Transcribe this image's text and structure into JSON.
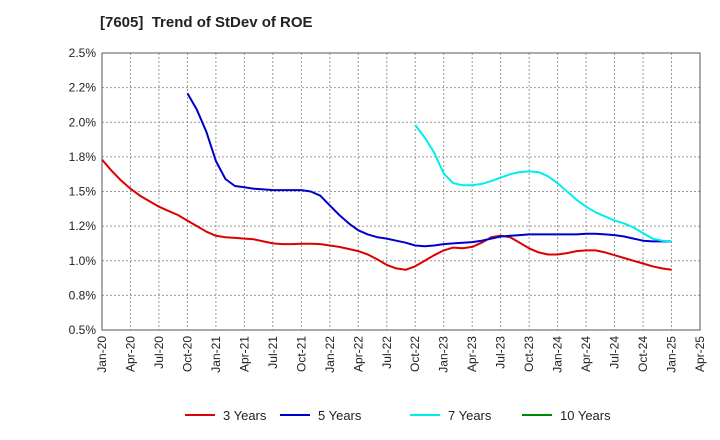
{
  "chart_data": {
    "type": "line",
    "title": "[7605]  Trend of StDev of ROE",
    "xlabel": "",
    "ylabel": "",
    "ylim": [
      0.5,
      2.5
    ],
    "y_ticks": [
      "0.5%",
      "0.8%",
      "1.0%",
      "1.2%",
      "1.5%",
      "1.8%",
      "2.0%",
      "2.2%",
      "2.5%"
    ],
    "x_ticks": [
      "Jan-20",
      "Apr-20",
      "Jul-20",
      "Oct-20",
      "Jan-21",
      "Apr-21",
      "Jul-21",
      "Oct-21",
      "Jan-22",
      "Apr-22",
      "Jul-22",
      "Oct-22",
      "Jan-23",
      "Apr-23",
      "Jul-23",
      "Oct-23",
      "Jan-24",
      "Apr-24",
      "Jul-24",
      "Oct-24",
      "Jan-25",
      "Apr-25"
    ],
    "grid": true,
    "legend_position": "bottom",
    "series": [
      {
        "name": "3 Years",
        "color": "#dd0000",
        "values": [
          [
            "2020-01",
            1.73
          ],
          [
            "2020-02",
            1.65
          ],
          [
            "2020-03",
            1.58
          ],
          [
            "2020-04",
            1.52
          ],
          [
            "2020-05",
            1.47
          ],
          [
            "2020-06",
            1.43
          ],
          [
            "2020-07",
            1.39
          ],
          [
            "2020-08",
            1.36
          ],
          [
            "2020-09",
            1.33
          ],
          [
            "2020-10",
            1.29
          ],
          [
            "2020-11",
            1.25
          ],
          [
            "2020-12",
            1.21
          ],
          [
            "2021-01",
            1.18
          ],
          [
            "2021-02",
            1.17
          ],
          [
            "2021-03",
            1.165
          ],
          [
            "2021-04",
            1.16
          ],
          [
            "2021-05",
            1.155
          ],
          [
            "2021-06",
            1.14
          ],
          [
            "2021-07",
            1.125
          ],
          [
            "2021-08",
            1.12
          ],
          [
            "2021-09",
            1.12
          ],
          [
            "2021-10",
            1.123
          ],
          [
            "2021-11",
            1.123
          ],
          [
            "2021-12",
            1.12
          ],
          [
            "2022-01",
            1.11
          ],
          [
            "2022-02",
            1.1
          ],
          [
            "2022-03",
            1.085
          ],
          [
            "2022-04",
            1.07
          ],
          [
            "2022-05",
            1.045
          ],
          [
            "2022-06",
            1.01
          ],
          [
            "2022-07",
            0.97
          ],
          [
            "2022-08",
            0.945
          ],
          [
            "2022-09",
            0.935
          ],
          [
            "2022-10",
            0.96
          ],
          [
            "2022-11",
            1.0
          ],
          [
            "2022-12",
            1.04
          ],
          [
            "2023-01",
            1.075
          ],
          [
            "2023-02",
            1.095
          ],
          [
            "2023-03",
            1.09
          ],
          [
            "2023-04",
            1.1
          ],
          [
            "2023-05",
            1.13
          ],
          [
            "2023-06",
            1.17
          ],
          [
            "2023-07",
            1.18
          ],
          [
            "2023-08",
            1.17
          ],
          [
            "2023-09",
            1.13
          ],
          [
            "2023-10",
            1.09
          ],
          [
            "2023-11",
            1.06
          ],
          [
            "2023-12",
            1.045
          ],
          [
            "2024-01",
            1.045
          ],
          [
            "2024-02",
            1.055
          ],
          [
            "2024-03",
            1.07
          ],
          [
            "2024-04",
            1.075
          ],
          [
            "2024-05",
            1.075
          ],
          [
            "2024-06",
            1.06
          ],
          [
            "2024-07",
            1.04
          ],
          [
            "2024-08",
            1.02
          ],
          [
            "2024-09",
            1.0
          ],
          [
            "2024-10",
            0.98
          ],
          [
            "2024-11",
            0.96
          ],
          [
            "2024-12",
            0.945
          ],
          [
            "2025-01",
            0.935
          ]
        ]
      },
      {
        "name": "5 Years",
        "color": "#0000cc",
        "values": [
          [
            "2020-10",
            2.21
          ],
          [
            "2020-11",
            2.09
          ],
          [
            "2020-12",
            1.93
          ],
          [
            "2021-01",
            1.72
          ],
          [
            "2021-02",
            1.59
          ],
          [
            "2021-03",
            1.54
          ],
          [
            "2021-04",
            1.53
          ],
          [
            "2021-05",
            1.52
          ],
          [
            "2021-06",
            1.515
          ],
          [
            "2021-07",
            1.51
          ],
          [
            "2021-08",
            1.51
          ],
          [
            "2021-09",
            1.51
          ],
          [
            "2021-10",
            1.51
          ],
          [
            "2021-11",
            1.5
          ],
          [
            "2021-12",
            1.47
          ],
          [
            "2022-01",
            1.4
          ],
          [
            "2022-02",
            1.33
          ],
          [
            "2022-03",
            1.27
          ],
          [
            "2022-04",
            1.22
          ],
          [
            "2022-05",
            1.19
          ],
          [
            "2022-06",
            1.17
          ],
          [
            "2022-07",
            1.16
          ],
          [
            "2022-08",
            1.145
          ],
          [
            "2022-09",
            1.13
          ],
          [
            "2022-10",
            1.11
          ],
          [
            "2022-11",
            1.105
          ],
          [
            "2022-12",
            1.11
          ],
          [
            "2023-01",
            1.12
          ],
          [
            "2023-02",
            1.125
          ],
          [
            "2023-03",
            1.13
          ],
          [
            "2023-04",
            1.135
          ],
          [
            "2023-05",
            1.145
          ],
          [
            "2023-06",
            1.16
          ],
          [
            "2023-07",
            1.175
          ],
          [
            "2023-08",
            1.18
          ],
          [
            "2023-09",
            1.185
          ],
          [
            "2023-10",
            1.19
          ],
          [
            "2023-11",
            1.19
          ],
          [
            "2023-12",
            1.19
          ],
          [
            "2024-01",
            1.19
          ],
          [
            "2024-02",
            1.19
          ],
          [
            "2024-03",
            1.19
          ],
          [
            "2024-04",
            1.195
          ],
          [
            "2024-05",
            1.195
          ],
          [
            "2024-06",
            1.19
          ],
          [
            "2024-07",
            1.185
          ],
          [
            "2024-08",
            1.175
          ],
          [
            "2024-09",
            1.16
          ],
          [
            "2024-10",
            1.145
          ],
          [
            "2024-11",
            1.14
          ],
          [
            "2024-12",
            1.14
          ],
          [
            "2025-01",
            1.14
          ]
        ]
      },
      {
        "name": "7 Years",
        "color": "#00eeee",
        "values": [
          [
            "2022-10",
            1.98
          ],
          [
            "2022-11",
            1.89
          ],
          [
            "2022-12",
            1.78
          ],
          [
            "2023-01",
            1.63
          ],
          [
            "2023-02",
            1.56
          ],
          [
            "2023-03",
            1.545
          ],
          [
            "2023-04",
            1.545
          ],
          [
            "2023-05",
            1.555
          ],
          [
            "2023-06",
            1.575
          ],
          [
            "2023-07",
            1.6
          ],
          [
            "2023-08",
            1.625
          ],
          [
            "2023-09",
            1.64
          ],
          [
            "2023-10",
            1.645
          ],
          [
            "2023-11",
            1.64
          ],
          [
            "2023-12",
            1.61
          ],
          [
            "2024-01",
            1.56
          ],
          [
            "2024-02",
            1.5
          ],
          [
            "2024-03",
            1.44
          ],
          [
            "2024-04",
            1.39
          ],
          [
            "2024-05",
            1.35
          ],
          [
            "2024-06",
            1.32
          ],
          [
            "2024-07",
            1.29
          ],
          [
            "2024-08",
            1.27
          ],
          [
            "2024-09",
            1.24
          ],
          [
            "2024-10",
            1.2
          ],
          [
            "2024-11",
            1.16
          ],
          [
            "2024-12",
            1.145
          ],
          [
            "2025-01",
            1.14
          ]
        ]
      },
      {
        "name": "10 Years",
        "color": "#008800",
        "values": []
      }
    ]
  }
}
